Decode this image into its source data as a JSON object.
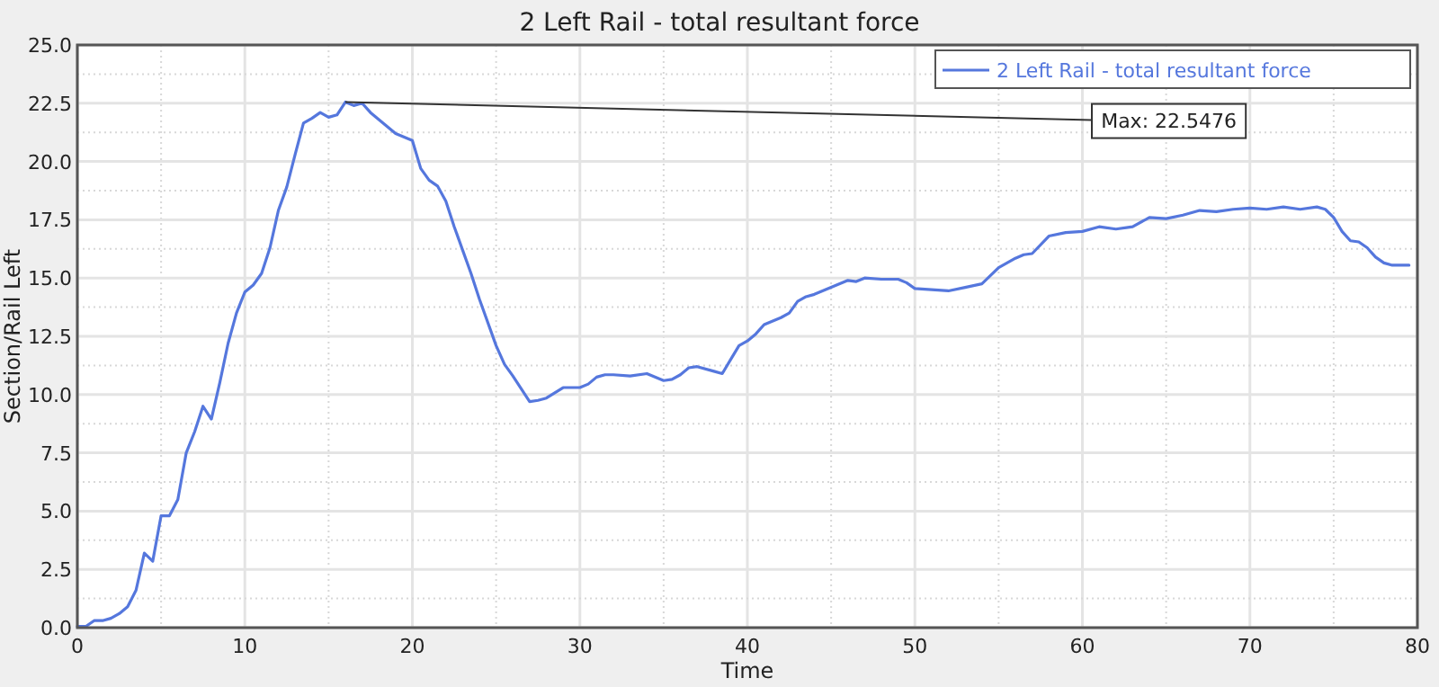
{
  "chart_data": {
    "type": "line",
    "title": "2 Left Rail - total resultant force",
    "xlabel": "Time",
    "ylabel": "Section/Rail Left",
    "xlim": [
      0,
      80
    ],
    "ylim": [
      0,
      25
    ],
    "xticks": [
      0,
      {
        "value": 5,
        "label": null
      },
      10,
      {
        "value": 15,
        "label": null
      },
      20,
      {
        "value": 25,
        "label": null
      },
      30,
      {
        "value": 35,
        "label": null
      },
      40,
      {
        "value": 45,
        "label": null
      },
      50,
      {
        "value": 55,
        "label": null
      },
      60,
      {
        "value": 65,
        "label": null
      },
      70,
      {
        "value": 75,
        "label": null
      },
      80
    ],
    "yticks": [
      {
        "value": 0,
        "label": "0.0"
      },
      {
        "value": 1.25,
        "label": null
      },
      {
        "value": 2.5,
        "label": "2.5"
      },
      {
        "value": 3.75,
        "label": null
      },
      {
        "value": 5,
        "label": "5.0"
      },
      {
        "value": 6.25,
        "label": null
      },
      {
        "value": 7.5,
        "label": "7.5"
      },
      {
        "value": 8.75,
        "label": null
      },
      {
        "value": 10,
        "label": "10.0"
      },
      {
        "value": 11.25,
        "label": null
      },
      {
        "value": 12.5,
        "label": "12.5"
      },
      {
        "value": 13.75,
        "label": null
      },
      {
        "value": 15,
        "label": "15.0"
      },
      {
        "value": 16.25,
        "label": null
      },
      {
        "value": 17.5,
        "label": "17.5"
      },
      {
        "value": 18.75,
        "label": null
      },
      {
        "value": 20,
        "label": "20.0"
      },
      {
        "value": 21.25,
        "label": null
      },
      {
        "value": 22.5,
        "label": "22.5"
      },
      {
        "value": 23.75,
        "label": null
      },
      {
        "value": 25,
        "label": "25.0"
      }
    ],
    "grid": true,
    "legend": "top right",
    "marker": "none",
    "line_style": "solid",
    "annotations": [
      {
        "text": "Max: 22.5476",
        "x": 16,
        "y": 22.5476
      }
    ],
    "series": [
      {
        "name": "2 Left Rail - total resultant force",
        "color": "#5577dd",
        "x": [
          0,
          0.5,
          1,
          1.5,
          2,
          2.5,
          3,
          3.5,
          4,
          4.5,
          5,
          5.5,
          6,
          6.5,
          7,
          7.5,
          8,
          8.5,
          9,
          9.5,
          10,
          10.5,
          11,
          11.5,
          12,
          12.5,
          13,
          13.5,
          14,
          14.5,
          15,
          15.5,
          16,
          16.5,
          17,
          17.5,
          18,
          18.5,
          19,
          20,
          20.5,
          21,
          21.5,
          22,
          22.5,
          23,
          23.5,
          24,
          25,
          25.5,
          26,
          27,
          27.5,
          28,
          29,
          30,
          30.5,
          31,
          31.5,
          32,
          33,
          34,
          35,
          35.5,
          36,
          36.5,
          37,
          38,
          38.5,
          39,
          39.5,
          40,
          40.5,
          41,
          42,
          42.5,
          43,
          43.5,
          44,
          45,
          46,
          46.5,
          47,
          48,
          49,
          49.5,
          50,
          51,
          52,
          53,
          54,
          55,
          56,
          56.5,
          57,
          58,
          59,
          60,
          61,
          62,
          63,
          64,
          65,
          66,
          67,
          68,
          69,
          70,
          71,
          72,
          73,
          74,
          74.5,
          75,
          75.5,
          76,
          76.5,
          77,
          77.5,
          78,
          78.5,
          79.5
        ],
        "values": [
          0.05,
          0.05,
          0.3,
          0.3,
          0.4,
          0.6,
          0.9,
          1.6,
          3.2,
          2.85,
          4.8,
          4.8,
          5.5,
          7.5,
          8.4,
          9.5,
          8.95,
          10.5,
          12.2,
          13.5,
          14.4,
          14.7,
          15.2,
          16.3,
          17.9,
          18.9,
          20.3,
          21.65,
          21.85,
          22.1,
          21.9,
          22.0,
          22.55,
          22.4,
          22.5,
          22.1,
          21.8,
          21.5,
          21.2,
          20.9,
          19.7,
          19.2,
          18.95,
          18.3,
          17.2,
          16.2,
          15.2,
          14.1,
          12.1,
          11.3,
          10.8,
          9.7,
          9.75,
          9.85,
          10.3,
          10.3,
          10.45,
          10.75,
          10.85,
          10.85,
          10.8,
          10.9,
          10.6,
          10.65,
          10.85,
          11.15,
          11.2,
          11.0,
          10.9,
          11.5,
          12.1,
          12.3,
          12.6,
          13.0,
          13.3,
          13.5,
          14.0,
          14.2,
          14.3,
          14.6,
          14.9,
          14.85,
          15.0,
          14.95,
          14.95,
          14.8,
          14.55,
          14.5,
          14.45,
          14.6,
          14.75,
          15.45,
          15.85,
          16.0,
          16.05,
          16.8,
          16.95,
          17.0,
          17.2,
          17.1,
          17.2,
          17.6,
          17.55,
          17.7,
          17.9,
          17.85,
          17.95,
          18.0,
          17.95,
          18.05,
          17.95,
          18.05,
          17.95,
          17.6,
          17.0,
          16.6,
          16.55,
          16.3,
          15.9,
          15.65,
          15.55,
          15.55
        ]
      }
    ]
  }
}
